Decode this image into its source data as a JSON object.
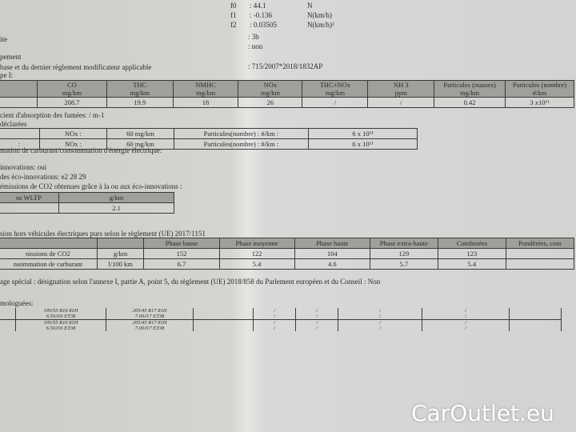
{
  "coeffs": [
    {
      "label": "f0",
      "value": ": 44.1",
      "unit": "N"
    },
    {
      "label": "f1",
      "value": ": -0.136",
      "unit": "N(km/h)"
    },
    {
      "label": "f2",
      "value": ": 0.03505",
      "unit": "N(km/h)²"
    }
  ],
  "lines": {
    "ite": "ite",
    "ite_val": ": 3b",
    "non": ": non",
    "pement": "pement",
    "base": "base et du dernier règlement modificateur applicable",
    "base_val": ": 715/2007*2018/1832AP",
    "type": "pe I:",
    "absorption": "cient d'absorption des fumées: / m-1",
    "declarees": "déclarées",
    "conso": "mation de carburant/consommation d'énergie électrique:",
    "eco": "innovations: oui",
    "eco_code": "des éco-innovations: e2 28 29",
    "eco_co2": "émissions de CO2 obtenues grâce à la ou aux éco-innovations :",
    "hors": "sion hors véhicules électriques purs selon le règlement (UE) 2017/1151",
    "special": "age spécial : désignation selon l'annexe I, partie A, point 5, du règlement (UE) 2018/858 du Parlement européen et du Conseil : Non",
    "homol": "mologuées:"
  },
  "emissions": {
    "headers": [
      [
        "",
        ""
      ],
      [
        "CO",
        "mg/km"
      ],
      [
        "THC",
        "mg/km"
      ],
      [
        "NMHC",
        "mg/km"
      ],
      [
        "NOx",
        "mg/km"
      ],
      [
        "THC+NOx",
        "mg/km"
      ],
      [
        "NH 3",
        "ppm"
      ],
      [
        "Particules (masses)",
        "mg/km"
      ],
      [
        "Particules (nombre)",
        "#/km"
      ]
    ],
    "values": [
      "",
      "208.7",
      "19.9",
      "18",
      "26",
      "/",
      "/",
      "0.42",
      "3 x10¹¹"
    ]
  },
  "declared": [
    [
      "",
      "NOx :",
      "60 mg/km",
      "Particules(nombre) : #/km :",
      "6 x 10¹¹"
    ],
    [
      ":",
      "NOx :",
      "60 mg/km",
      "Particules(nombre) : #/km :",
      "6 x 10¹¹"
    ]
  ],
  "wltp": {
    "headers": [
      "ns WLTP",
      "g/km"
    ],
    "values": [
      "",
      "2.1"
    ]
  },
  "consumption": {
    "headers": [
      "",
      "",
      "Phase basse",
      "Phase moyenne",
      "Phase haute",
      "Phase extra-haute",
      "Combinées",
      "Pondérées, com"
    ],
    "rows": [
      [
        "nissions de CO2",
        "g/km",
        "152",
        "122",
        "104",
        "129",
        "123",
        ""
      ],
      [
        "nsommation de carburant",
        "l/100 km",
        "6.7",
        "5.4",
        "4.6",
        "5.7",
        "5.4",
        ""
      ]
    ]
  },
  "tyres": [
    [
      "",
      "195/55 R16 81H",
      "205/45 R17 81H",
      "",
      "/",
      "/",
      "/",
      "/",
      ""
    ],
    [
      "",
      "6.50J16 ET38",
      "7.00J17 ET38",
      "",
      "/",
      "/",
      "/",
      "/",
      ""
    ],
    [
      "",
      "195/55 R16 81H",
      "205/45 R17 81H",
      "",
      "/",
      "/",
      "/",
      "/",
      ""
    ],
    [
      "",
      "6.50J16 ET38",
      "7.00J17 ET38",
      "",
      "/",
      "/",
      "/",
      "/",
      ""
    ]
  ],
  "watermark": "CarOutlet.eu"
}
